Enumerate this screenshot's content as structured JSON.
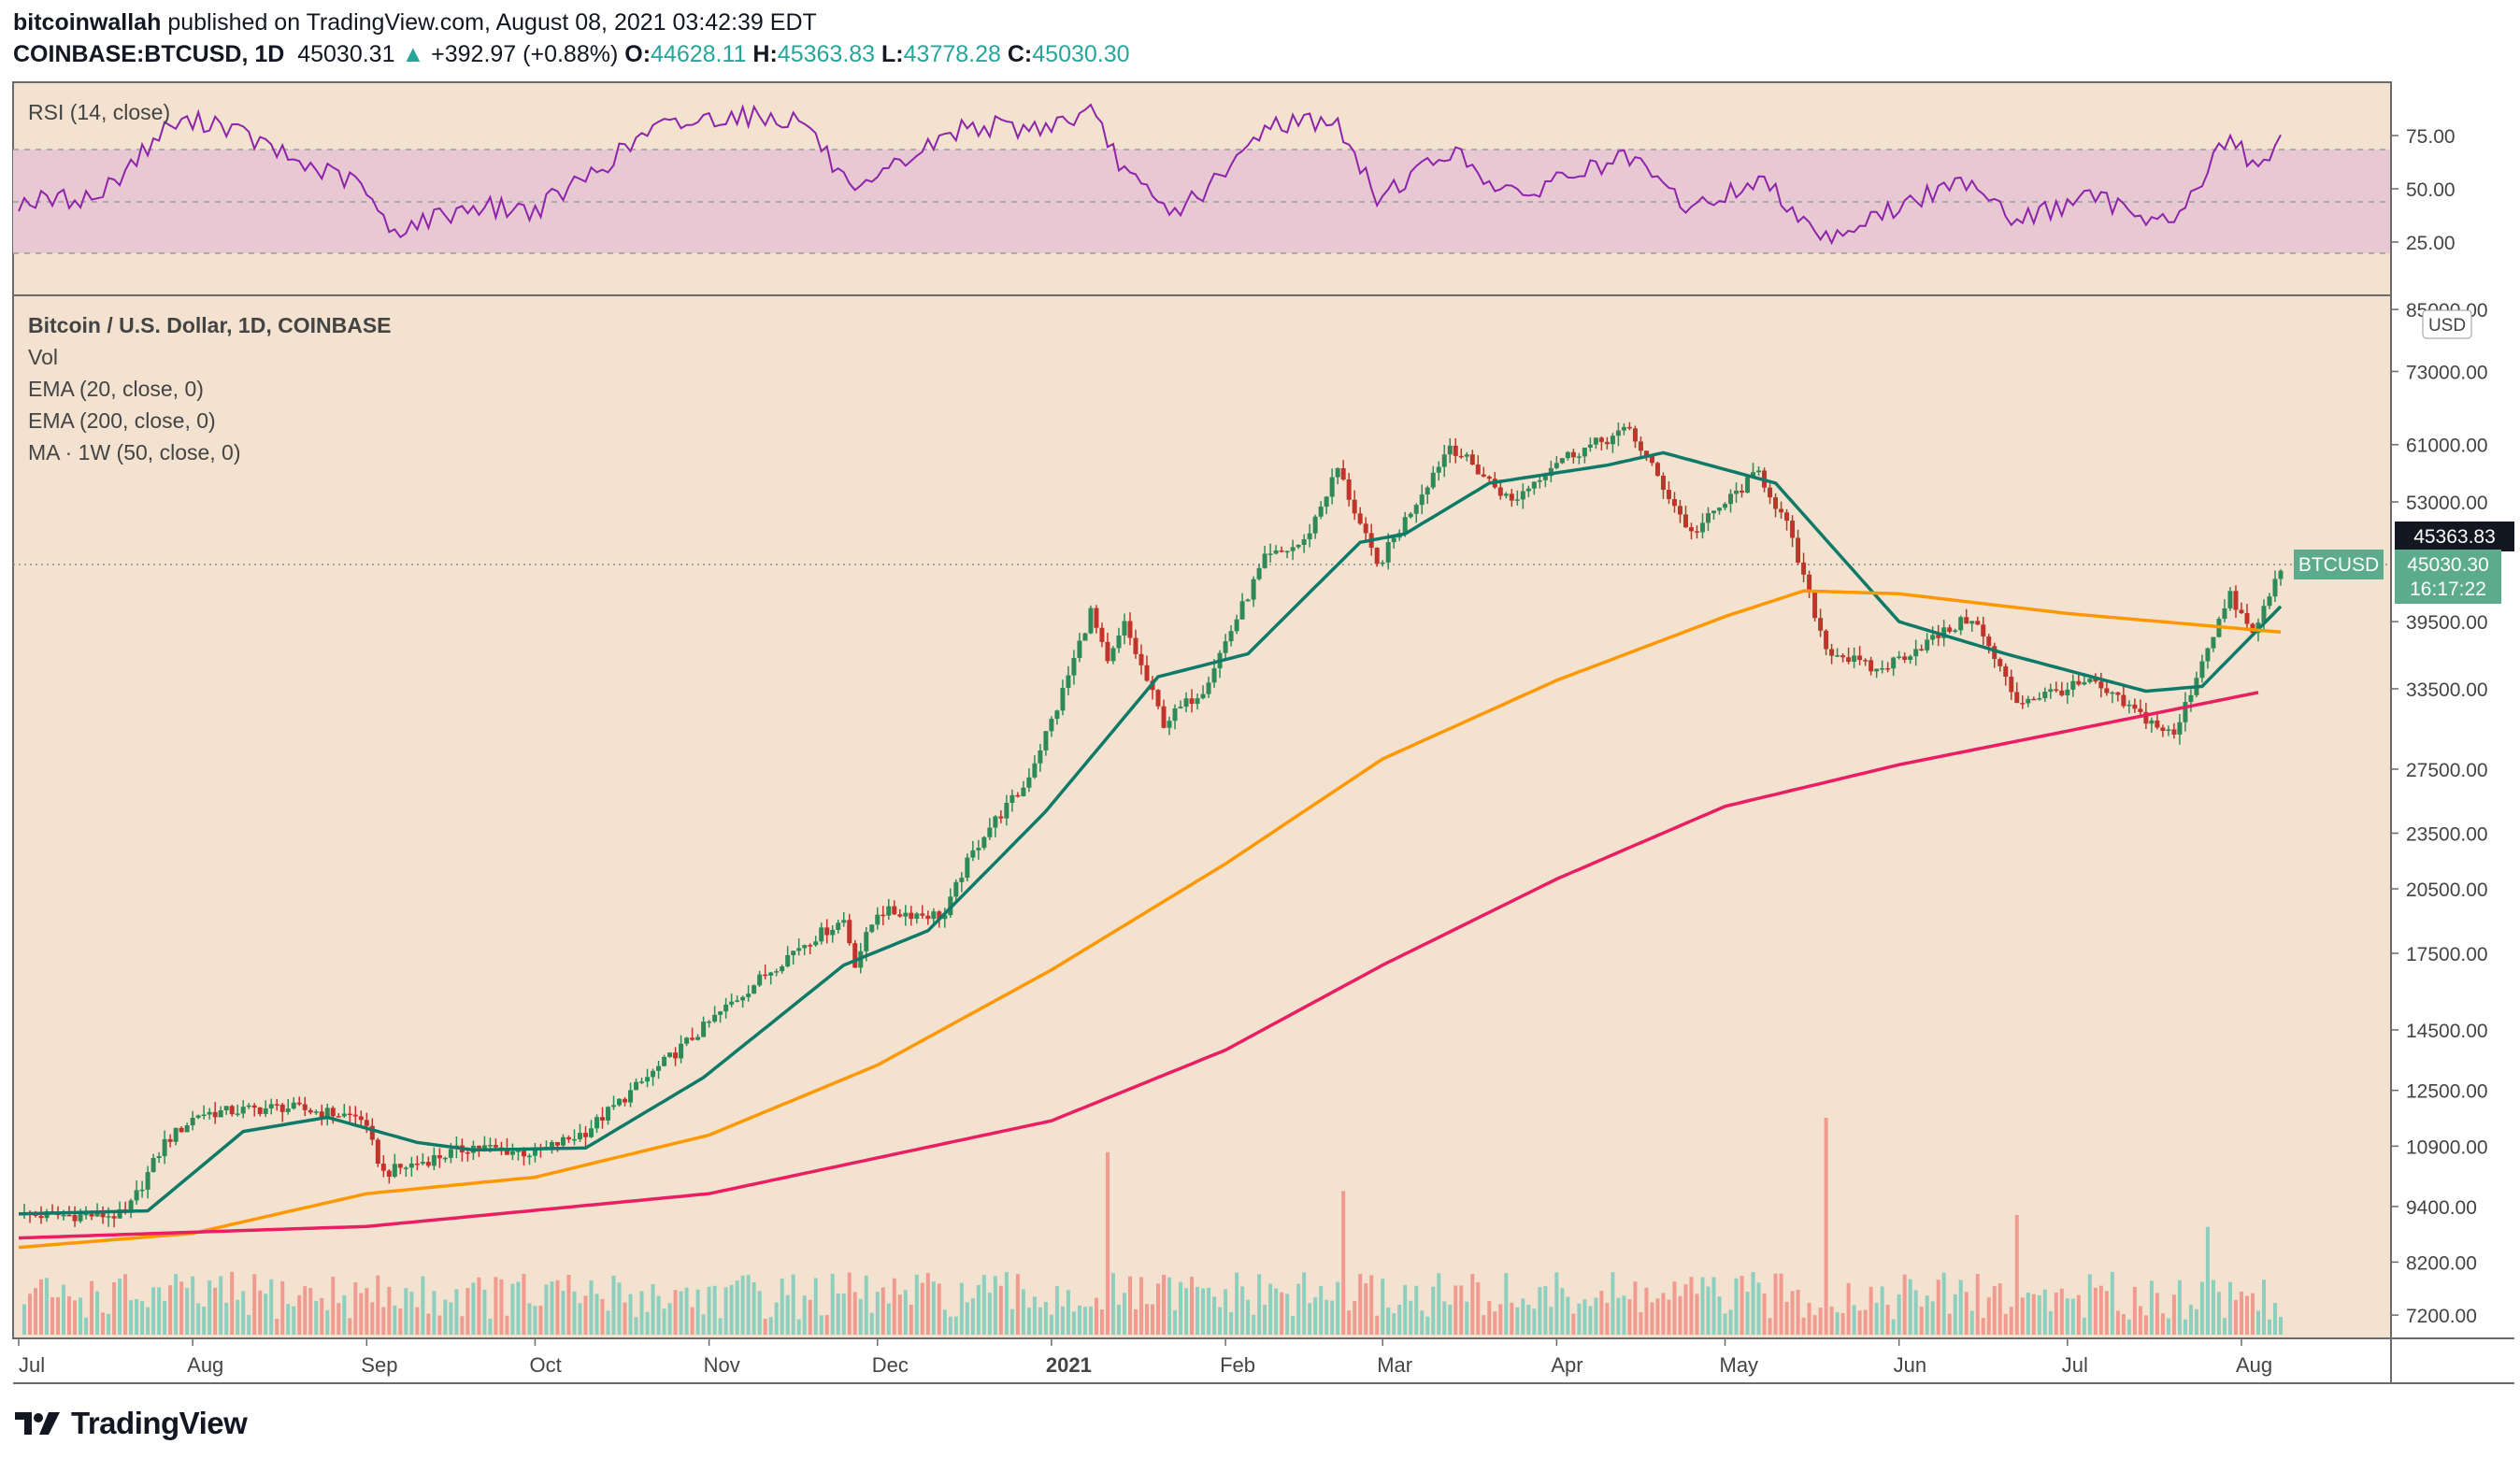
{
  "header": {
    "author": "bitcoinwallah",
    "published": "published on TradingView.com, August 08, 2021 03:42:39 EDT",
    "symbol": "COINBASE:BTCUSD, 1D",
    "last": "45030.31",
    "change_arrow": "▲",
    "change": "+392.97 (+0.88%)",
    "o_label": "O:",
    "o_value": "44628.11",
    "h_label": "H:",
    "h_value": "45363.83",
    "l_label": "L:",
    "l_value": "43778.28",
    "c_label": "C:",
    "c_value": "45030.30"
  },
  "rsi_pane": {
    "title": "RSI (14, close)",
    "ticks": [
      "75.00",
      "50.00",
      "25.00"
    ]
  },
  "price_pane": {
    "title": "Bitcoin / U.S. Dollar, 1D, COINBASE",
    "legend": [
      "Vol",
      "EMA (20, close, 0)",
      "EMA (200, close, 0)",
      "MA · 1W (50, close, 0)"
    ],
    "currency": "USD",
    "price_ticks": [
      "85000.00",
      "73000.00",
      "61000.00",
      "53000.00",
      "39500.00",
      "33500.00",
      "27500.00",
      "23500.00",
      "20500.00",
      "17500.00",
      "14500.00",
      "12500.00",
      "10900.00",
      "9400.00",
      "8200.00",
      "7200.00"
    ],
    "high_tag": "45363.83",
    "symbol_tag": "BTCUSD",
    "price_tag": "45030.30",
    "countdown": "16:17:22"
  },
  "time_axis": [
    "Jul",
    "Aug",
    "Sep",
    "Oct",
    "Nov",
    "Dec",
    "2021",
    "Feb",
    "Mar",
    "Apr",
    "May",
    "Jun",
    "Jul",
    "Aug"
  ],
  "brand": "TradingView",
  "colors": {
    "background": "#f2e2cf",
    "rsi_band": "#e8c8d3",
    "rsi_line": "#8e24aa",
    "up_candle": "#2e8b57",
    "down_candle": "#c1332b",
    "ema20": "#0f7a68",
    "ema200": "#ff9800",
    "ma_weekly": "#e91e63",
    "vol_up": "#8ccfbf",
    "vol_down": "#f09a90"
  },
  "chart_data": {
    "type": "candlestick",
    "title": "Bitcoin / U.S. Dollar, 1D, COINBASE",
    "y_scale": "log",
    "ylim": [
      6800,
      88000
    ],
    "x_start": "2020-07-01",
    "x_end": "2021-08-08",
    "month_ticks": [
      "2020-07-01",
      "2020-08-01",
      "2020-09-01",
      "2020-10-01",
      "2020-11-01",
      "2020-12-01",
      "2021-01-01",
      "2021-02-01",
      "2021-03-01",
      "2021-04-01",
      "2021-05-01",
      "2021-06-01",
      "2021-07-01",
      "2021-08-01"
    ],
    "close_anchors": [
      [
        "2020-07-01",
        9200
      ],
      [
        "2020-07-20",
        9200
      ],
      [
        "2020-07-27",
        11000
      ],
      [
        "2020-08-02",
        11800
      ],
      [
        "2020-08-17",
        12000
      ],
      [
        "2020-08-31",
        11700
      ],
      [
        "2020-09-04",
        10200
      ],
      [
        "2020-09-20",
        10900
      ],
      [
        "2020-10-01",
        10700
      ],
      [
        "2020-10-10",
        11300
      ],
      [
        "2020-10-21",
        12900
      ],
      [
        "2020-11-05",
        15500
      ],
      [
        "2020-11-17",
        17800
      ],
      [
        "2020-11-25",
        19000
      ],
      [
        "2020-11-27",
        17100
      ],
      [
        "2020-12-01",
        19400
      ],
      [
        "2020-12-13",
        19200
      ],
      [
        "2020-12-16",
        21300
      ],
      [
        "2020-12-20",
        23500
      ],
      [
        "2020-12-27",
        26300
      ],
      [
        "2021-01-02",
        32000
      ],
      [
        "2021-01-08",
        40500
      ],
      [
        "2021-01-11",
        35500
      ],
      [
        "2021-01-14",
        39200
      ],
      [
        "2021-01-21",
        30800
      ],
      [
        "2021-01-28",
        33500
      ],
      [
        "2021-02-08",
        46000
      ],
      [
        "2021-02-15",
        48000
      ],
      [
        "2021-02-21",
        57500
      ],
      [
        "2021-02-28",
        45200
      ],
      [
        "2021-03-13",
        61000
      ],
      [
        "2021-03-24",
        53000
      ],
      [
        "2021-04-01",
        58700
      ],
      [
        "2021-04-14",
        63300
      ],
      [
        "2021-04-25",
        49000
      ],
      [
        "2021-05-07",
        57000
      ],
      [
        "2021-05-12",
        50000
      ],
      [
        "2021-05-19",
        37000
      ],
      [
        "2021-05-28",
        35000
      ],
      [
        "2021-06-14",
        40000
      ],
      [
        "2021-06-22",
        32500
      ],
      [
        "2021-07-05",
        34000
      ],
      [
        "2021-07-20",
        29800
      ],
      [
        "2021-07-26",
        37300
      ],
      [
        "2021-07-30",
        42000
      ],
      [
        "2021-08-03",
        38200
      ],
      [
        "2021-08-08",
        45030
      ]
    ],
    "series": [
      {
        "name": "EMA (20, close, 0)",
        "anchors": [
          [
            "2020-07-01",
            9230
          ],
          [
            "2020-07-24",
            9300
          ],
          [
            "2020-08-10",
            11300
          ],
          [
            "2020-08-25",
            11700
          ],
          [
            "2020-09-10",
            11000
          ],
          [
            "2020-09-20",
            10800
          ],
          [
            "2020-10-10",
            10850
          ],
          [
            "2020-10-31",
            12900
          ],
          [
            "2020-11-25",
            17000
          ],
          [
            "2020-12-10",
            18500
          ],
          [
            "2020-12-31",
            24800
          ],
          [
            "2021-01-20",
            34500
          ],
          [
            "2021-02-05",
            36500
          ],
          [
            "2021-02-25",
            48000
          ],
          [
            "2021-03-05",
            49000
          ],
          [
            "2021-03-20",
            55500
          ],
          [
            "2021-04-10",
            58000
          ],
          [
            "2021-04-20",
            59800
          ],
          [
            "2021-05-10",
            55500
          ],
          [
            "2021-06-01",
            39500
          ],
          [
            "2021-06-20",
            36500
          ],
          [
            "2021-07-15",
            33300
          ],
          [
            "2021-07-25",
            33700
          ],
          [
            "2021-08-08",
            41000
          ]
        ]
      },
      {
        "name": "EMA (200, close, 0)",
        "anchors": [
          [
            "2020-07-01",
            8500
          ],
          [
            "2020-08-01",
            8800
          ],
          [
            "2020-09-01",
            9700
          ],
          [
            "2020-10-01",
            10100
          ],
          [
            "2020-11-01",
            11200
          ],
          [
            "2020-12-01",
            13300
          ],
          [
            "2021-01-01",
            16800
          ],
          [
            "2021-02-01",
            21800
          ],
          [
            "2021-03-01",
            28200
          ],
          [
            "2021-04-01",
            34200
          ],
          [
            "2021-05-01",
            40000
          ],
          [
            "2021-05-15",
            42600
          ],
          [
            "2021-06-01",
            42300
          ],
          [
            "2021-07-01",
            40300
          ],
          [
            "2021-08-08",
            38500
          ]
        ]
      },
      {
        "name": "MA · 1W (50, close, 0)",
        "anchors": [
          [
            "2020-07-01",
            8700
          ],
          [
            "2020-09-01",
            8950
          ],
          [
            "2020-11-01",
            9700
          ],
          [
            "2021-01-01",
            11600
          ],
          [
            "2021-02-01",
            13800
          ],
          [
            "2021-03-01",
            17000
          ],
          [
            "2021-04-01",
            21000
          ],
          [
            "2021-05-01",
            25100
          ],
          [
            "2021-06-01",
            27800
          ],
          [
            "2021-07-01",
            30200
          ],
          [
            "2021-08-04",
            33200
          ]
        ]
      },
      {
        "name": "RSI (14, close)",
        "anchors": [
          [
            "2020-07-01",
            44
          ],
          [
            "2020-07-15",
            46
          ],
          [
            "2020-07-28",
            80
          ],
          [
            "2020-08-05",
            82
          ],
          [
            "2020-08-20",
            62
          ],
          [
            "2020-08-31",
            52
          ],
          [
            "2020-09-05",
            30
          ],
          [
            "2020-09-20",
            42
          ],
          [
            "2020-10-01",
            40
          ],
          [
            "2020-10-10",
            55
          ],
          [
            "2020-10-22",
            78
          ],
          [
            "2020-11-05",
            85
          ],
          [
            "2020-11-18",
            82
          ],
          [
            "2020-11-27",
            45
          ],
          [
            "2020-12-05",
            62
          ],
          [
            "2020-12-17",
            80
          ],
          [
            "2020-12-28",
            78
          ],
          [
            "2021-01-08",
            85
          ],
          [
            "2021-01-15",
            55
          ],
          [
            "2021-01-22",
            38
          ],
          [
            "2021-02-01",
            56
          ],
          [
            "2021-02-08",
            80
          ],
          [
            "2021-02-20",
            83
          ],
          [
            "2021-02-28",
            46
          ],
          [
            "2021-03-13",
            68
          ],
          [
            "2021-03-25",
            45
          ],
          [
            "2021-04-01",
            55
          ],
          [
            "2021-04-14",
            64
          ],
          [
            "2021-04-25",
            40
          ],
          [
            "2021-05-07",
            54
          ],
          [
            "2021-05-12",
            44
          ],
          [
            "2021-05-19",
            27
          ],
          [
            "2021-05-26",
            35
          ],
          [
            "2021-06-14",
            55
          ],
          [
            "2021-06-22",
            35
          ],
          [
            "2021-07-05",
            46
          ],
          [
            "2021-07-20",
            34
          ],
          [
            "2021-07-30",
            76
          ],
          [
            "2021-08-03",
            60
          ],
          [
            "2021-08-08",
            72
          ]
        ]
      }
    ],
    "volume_spikes": [
      [
        "2021-01-11",
        12.2
      ],
      [
        "2021-02-22",
        9.6
      ],
      [
        "2021-05-19",
        14.5
      ],
      [
        "2021-06-22",
        8.0
      ],
      [
        "2021-07-26",
        7.2
      ]
    ]
  }
}
